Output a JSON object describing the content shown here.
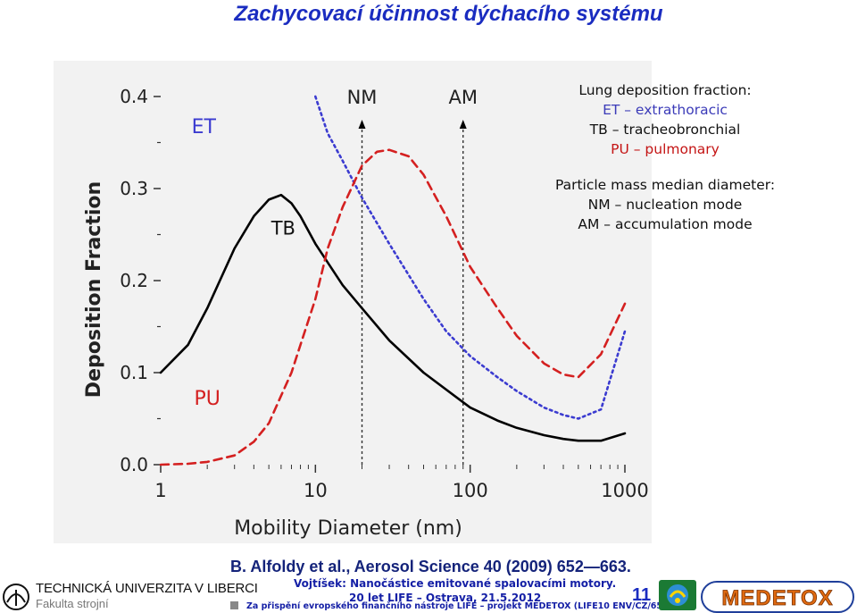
{
  "title": "Zachycovací účinnost dýchacího systému",
  "legend": {
    "heading1": "Lung deposition fraction:",
    "et": "ET – extrathoracic",
    "tb": "TB – tracheobronchial",
    "pu": "PU – pulmonary",
    "heading2": "Particle mass median diameter:",
    "nm": "NM – nucleation mode",
    "am": "AM – accumulation mode"
  },
  "citation": "B. Alfoldy et al., Aerosol Science 40 (2009) 652—663.",
  "footer": {
    "line1": "Vojtíšek: Nanočástice emitované spalovacími motory.",
    "line2": "20 let LIFE – Ostrava, 21.5.2012",
    "line3": "Za přispění evropského finančního nástroje LIFE – projekt MEDETOX (LIFE10 ENV/CZ/651)",
    "university": "TECHNICKÁ UNIVERZITA V LIBERCI",
    "faculty": "Fakulta strojní",
    "page_number": "11",
    "logo_text": "MEDETOX"
  },
  "chart_data": {
    "type": "line",
    "xlabel": "Mobility Diameter (nm)",
    "ylabel": "Deposition Fraction",
    "xscale": "log",
    "xlim": [
      1,
      1000
    ],
    "ylim": [
      0,
      0.4
    ],
    "x_ticks": [
      "1",
      "10",
      "100",
      "1000"
    ],
    "y_ticks": [
      "0.0",
      "0.1",
      "0.2",
      "0.3",
      "0.4"
    ],
    "grid": false,
    "series": [
      {
        "name": "ET",
        "color": "#3b3bd0",
        "style": "dotted",
        "x": [
          10,
          12,
          15,
          20,
          30,
          50,
          70,
          100,
          150,
          200,
          300,
          400,
          500,
          700,
          1000
        ],
        "y": [
          0.4,
          0.36,
          0.33,
          0.29,
          0.24,
          0.18,
          0.145,
          0.118,
          0.095,
          0.08,
          0.062,
          0.054,
          0.05,
          0.06,
          0.145
        ]
      },
      {
        "name": "TB",
        "color": "#000000",
        "style": "solid",
        "x": [
          1,
          1.5,
          2,
          3,
          4,
          5,
          6,
          7,
          8,
          10,
          15,
          20,
          30,
          50,
          100,
          150,
          200,
          300,
          400,
          500,
          700,
          1000
        ],
        "y": [
          0.1,
          0.13,
          0.17,
          0.235,
          0.27,
          0.288,
          0.293,
          0.284,
          0.27,
          0.24,
          0.195,
          0.17,
          0.135,
          0.1,
          0.062,
          0.048,
          0.04,
          0.032,
          0.028,
          0.026,
          0.026,
          0.034
        ]
      },
      {
        "name": "PU",
        "color": "#d42020",
        "style": "dashed",
        "x": [
          1,
          1.5,
          2,
          3,
          4,
          5,
          6,
          7,
          8,
          10,
          12,
          15,
          20,
          25,
          30,
          40,
          50,
          70,
          100,
          150,
          200,
          300,
          400,
          500,
          700,
          1000
        ],
        "y": [
          0.0,
          0.001,
          0.003,
          0.01,
          0.025,
          0.045,
          0.075,
          0.1,
          0.13,
          0.18,
          0.235,
          0.28,
          0.325,
          0.34,
          0.342,
          0.335,
          0.315,
          0.27,
          0.215,
          0.17,
          0.14,
          0.11,
          0.098,
          0.095,
          0.12,
          0.175
        ]
      }
    ],
    "markers": [
      {
        "label": "NM",
        "x": 20
      },
      {
        "label": "AM",
        "x": 90
      }
    ],
    "colors": {
      "et_label": "#3b3bd0",
      "tb_label": "#111111",
      "pu_label": "#d42020",
      "axis": "#333333"
    }
  }
}
